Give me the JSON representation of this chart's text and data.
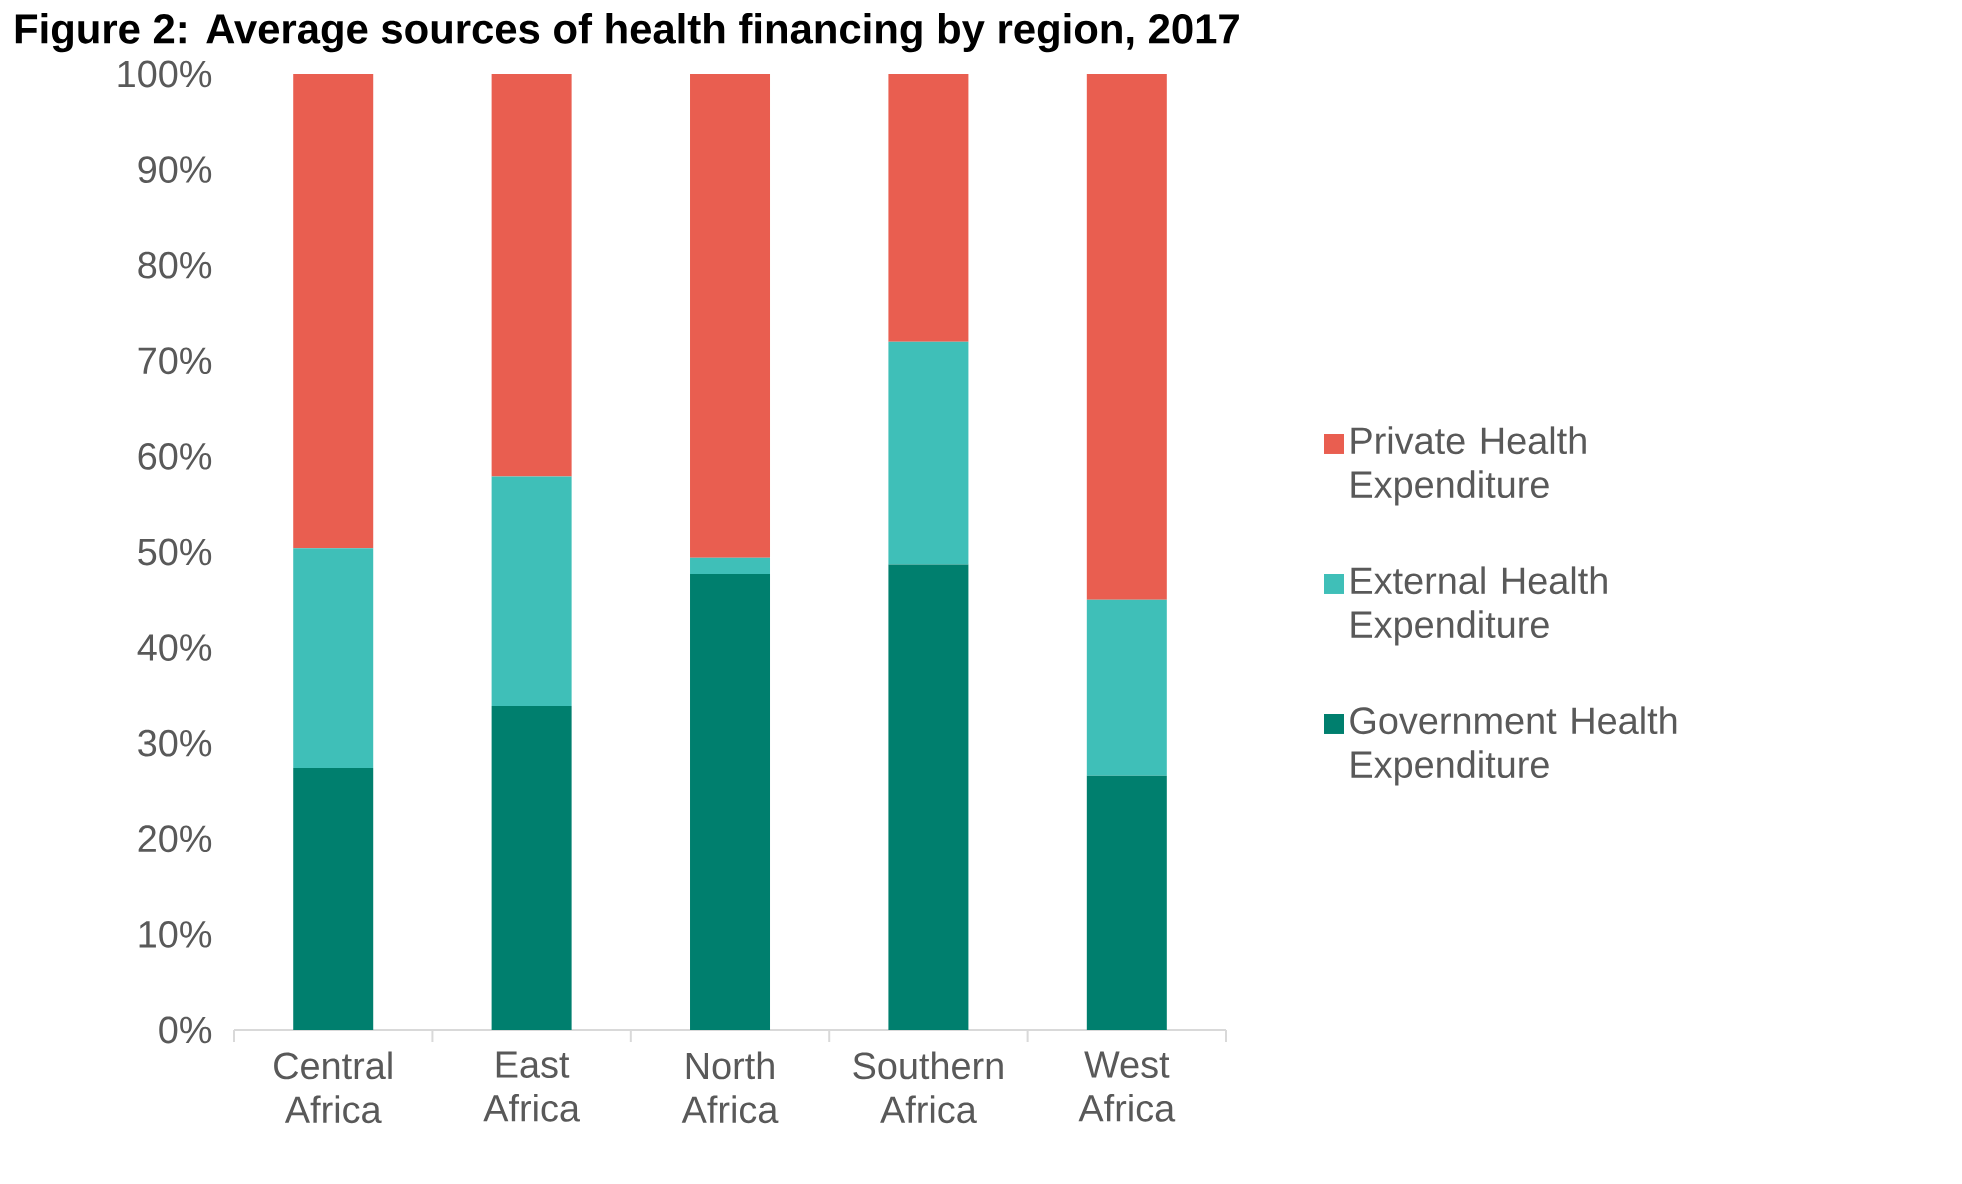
{
  "chart_data": {
    "type": "bar",
    "title": "Figure 2: Average sources of health financing by region, 2017",
    "stacked": true,
    "legend": "right",
    "categories": [
      "Central Africa",
      "East Africa",
      "North Africa",
      "Southern Africa",
      "West Africa"
    ],
    "ylim": [
      0,
      100
    ],
    "yticks": [
      {
        "value": 0,
        "label": "0%"
      },
      {
        "value": 10,
        "label": "10%"
      },
      {
        "value": 20,
        "label": "20%"
      },
      {
        "value": 30,
        "label": "30%"
      },
      {
        "value": 40,
        "label": "40%"
      },
      {
        "value": 50,
        "label": "50%"
      },
      {
        "value": 60,
        "label": "60%"
      },
      {
        "value": 70,
        "label": "70%"
      },
      {
        "value": 80,
        "label": "80%"
      },
      {
        "value": 90,
        "label": "90%"
      },
      {
        "value": 100,
        "label": "100%"
      }
    ],
    "series": [
      {
        "name": "Government Health Expenditure",
        "color": "#007f6e",
        "values": [
          27.4,
          33.9,
          47.7,
          48.7,
          26.6
        ]
      },
      {
        "name": "External Health Expenditure",
        "color": "#3fbfb8",
        "values": [
          23.0,
          24.0,
          1.7,
          23.3,
          18.4
        ]
      },
      {
        "name": "Private Health Expenditure",
        "color": "#e95e50",
        "values": [
          49.6,
          42.1,
          50.6,
          28.0,
          55.0
        ]
      }
    ]
  }
}
